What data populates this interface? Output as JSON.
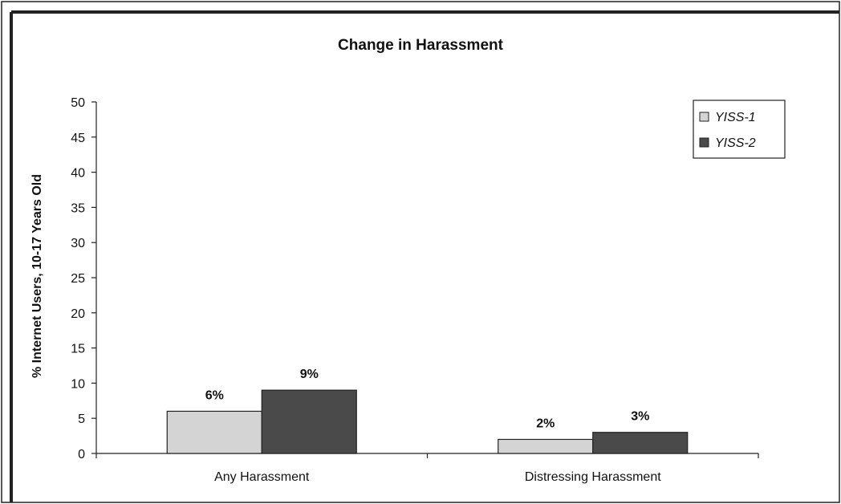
{
  "chart_data": {
    "type": "bar",
    "title": "Change in Harassment",
    "xlabel": "",
    "ylabel": "% Internet Users, 10-17 Years Old",
    "categories": [
      "Any Harassment",
      "Distressing Harassment"
    ],
    "series": [
      {
        "name": "YISS-1",
        "values": [
          6,
          2
        ],
        "labels": [
          "6%",
          "2%"
        ],
        "color": "#d4d4d4"
      },
      {
        "name": "YISS-2",
        "values": [
          9,
          3
        ],
        "labels": [
          "9%",
          "3%"
        ],
        "color": "#4a4a4a"
      }
    ],
    "ylim": [
      0,
      50
    ],
    "yticks": [
      0,
      5,
      10,
      15,
      20,
      25,
      30,
      35,
      40,
      45,
      50
    ],
    "grid": false,
    "legend_position": "top-right"
  }
}
